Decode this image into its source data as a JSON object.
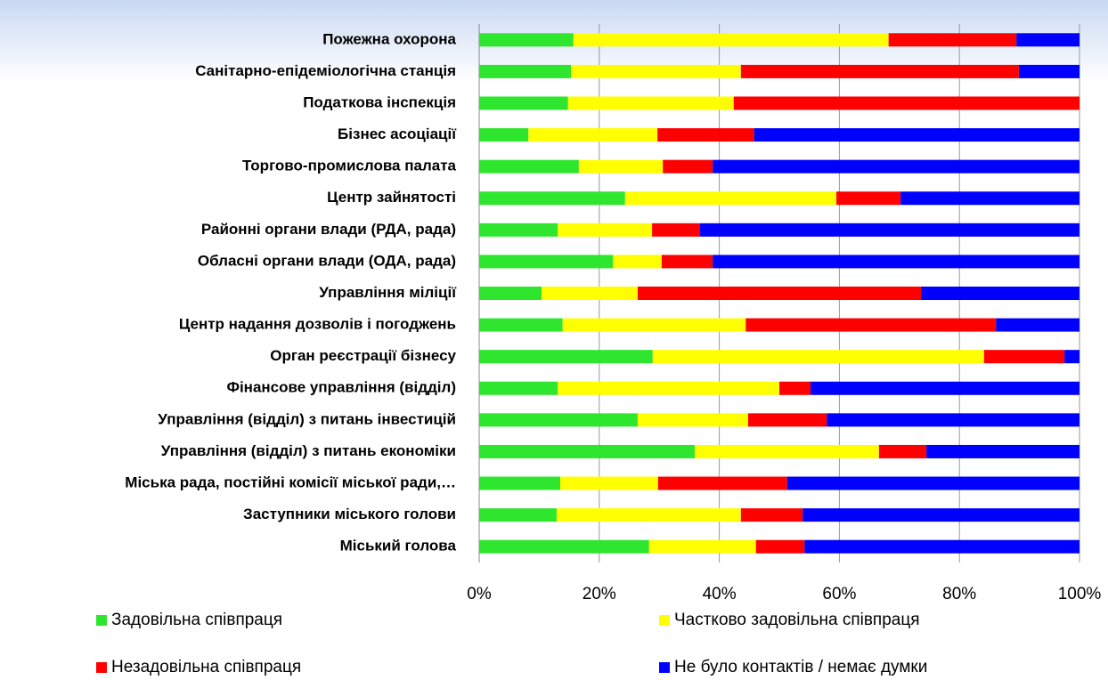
{
  "chart_data": {
    "type": "bar",
    "orientation": "horizontal",
    "stacked": true,
    "categories": [
      "Пожежна охорона",
      "Санітарно-епідеміологічна  станція",
      "Податкова  інспекція",
      "Бізнес асоціації",
      "Торгово-промислова  палата",
      "Центр зайнятості",
      "Районні органи влади (РДА, рада)",
      "Обласні органи влади (ОДА, рада)",
      "Управління міліції",
      "Центр надання дозволів і погоджень",
      "Орган реєстрації бізнесу",
      "Фінансове управління (відділ)",
      "Управління (відділ) з питань інвестицій",
      "Управління (відділ) з питань економіки",
      "Міська рада, постійні комісії міської ради,…",
      "Заступники міського голови",
      "Міський голова"
    ],
    "series": [
      {
        "name": "Задовільна співпраця",
        "color": "#2ee62e",
        "values": [
          15.7,
          15.3,
          14.8,
          8.2,
          16.6,
          24.3,
          13.1,
          22.3,
          10.4,
          13.9,
          28.9,
          13.1,
          26.4,
          35.9,
          13.5,
          12.9,
          28.3
        ]
      },
      {
        "name": "Частково задовільна співпраця",
        "color": "#ffff00",
        "values": [
          52.5,
          28.3,
          27.6,
          21.5,
          14.0,
          35.2,
          15.7,
          8.1,
          16.0,
          30.5,
          55.2,
          36.9,
          18.4,
          30.7,
          16.3,
          30.7,
          17.8
        ]
      },
      {
        "name": "Незадовільна співпраця",
        "color": "#ff0000",
        "values": [
          21.3,
          46.3,
          57.6,
          16.1,
          8.3,
          10.7,
          8.0,
          8.5,
          47.2,
          41.7,
          13.4,
          5.2,
          13.1,
          7.9,
          21.5,
          10.3,
          8.1
        ]
      },
      {
        "name": "Не було контактів / немає думки",
        "color": "#0000ff",
        "values": [
          10.5,
          10.1,
          0,
          54.2,
          61.1,
          29.8,
          63.2,
          61.1,
          26.4,
          13.9,
          2.5,
          44.8,
          42.1,
          25.5,
          48.7,
          46.1,
          45.8
        ]
      }
    ],
    "xlim": [
      0,
      100
    ],
    "xticks": [
      {
        "value": 0,
        "label": "0%"
      },
      {
        "value": 20,
        "label": "20%"
      },
      {
        "value": 40,
        "label": "40%"
      },
      {
        "value": 60,
        "label": "60%"
      },
      {
        "value": 80,
        "label": "80%"
      },
      {
        "value": 100,
        "label": "100%"
      }
    ],
    "grid": true
  }
}
